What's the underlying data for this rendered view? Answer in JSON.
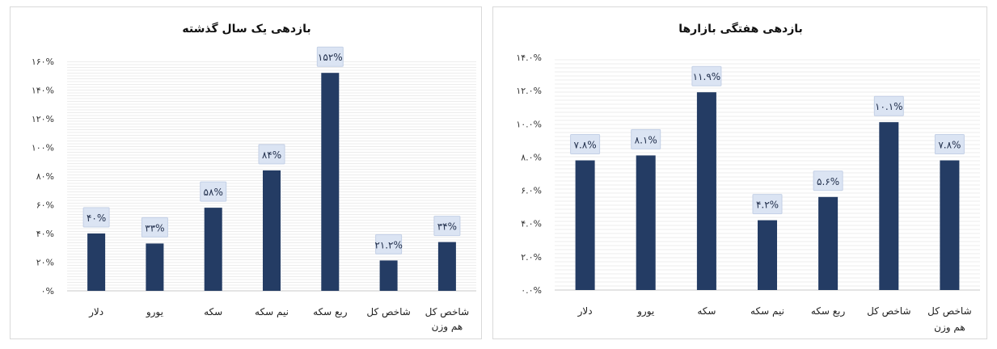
{
  "chart_data": [
    {
      "type": "bar",
      "title": "بازدهی یک سال گذشته",
      "categories": [
        [
          "دلار"
        ],
        [
          "یورو"
        ],
        [
          "سکه"
        ],
        [
          "نیم سکه"
        ],
        [
          "ربع سکه"
        ],
        [
          "شاخص کل"
        ],
        [
          "شاخص کل",
          "هم وزن"
        ]
      ],
      "values": [
        40,
        33,
        58,
        84,
        152,
        21.2,
        34
      ],
      "value_labels": [
        "۴۰%",
        "۳۳%",
        "۵۸%",
        "۸۴%",
        "۱۵۲%",
        "۲۱.۲%",
        "۳۴%"
      ],
      "yticks": [
        0,
        20,
        40,
        60,
        80,
        100,
        120,
        140,
        160
      ],
      "ytick_labels": [
        "۰%",
        "۲۰%",
        "۴۰%",
        "۶۰%",
        "۸۰%",
        "۱۰۰%",
        "۱۲۰%",
        "۱۴۰%",
        "۱۶۰%"
      ],
      "ylim": [
        0,
        160
      ],
      "grid": true,
      "bar_color": "#243c64"
    },
    {
      "type": "bar",
      "title": "بازدهی هفتگی  بازارها",
      "categories": [
        [
          "دلار"
        ],
        [
          "یورو"
        ],
        [
          "سکه"
        ],
        [
          "نیم سکه"
        ],
        [
          "ربع سکه"
        ],
        [
          "شاخص کل"
        ],
        [
          "شاخص کل",
          "هم وزن"
        ]
      ],
      "values": [
        7.8,
        8.1,
        11.9,
        4.2,
        5.6,
        10.1,
        7.8
      ],
      "value_labels": [
        "۷.۸%",
        "۸.۱%",
        "۱۱.۹%",
        "۴.۲%",
        "۵.۶%",
        "۱۰.۱%",
        "۷.۸%"
      ],
      "yticks": [
        0,
        2,
        4,
        6,
        8,
        10,
        12,
        14
      ],
      "ytick_labels": [
        "۰.۰%",
        "۲.۰%",
        "۴.۰%",
        "۶.۰%",
        "۸.۰%",
        "۱۰.۰%",
        "۱۲.۰%",
        "۱۴.۰%"
      ],
      "ylim": [
        0,
        14
      ],
      "grid": true,
      "bar_color": "#243c64"
    }
  ]
}
